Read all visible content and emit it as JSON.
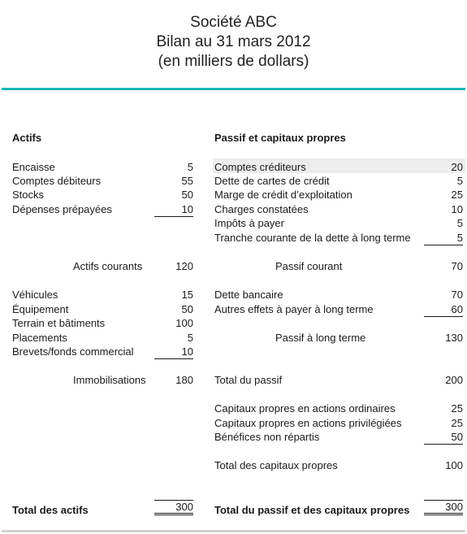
{
  "header": {
    "line1": "Société ABC",
    "line2": "Bilan au 31 mars 2012",
    "line3": "(en milliers de dollars)"
  },
  "colors": {
    "accent": "#1ab5b5",
    "highlight": "#ededed",
    "bottom_rule": "#d3d3d3"
  },
  "assets": {
    "heading": "Actifs",
    "current_items": [
      {
        "label": "Encaisse",
        "value": "5"
      },
      {
        "label": "Comptes débiteurs",
        "value": "55"
      },
      {
        "label": "Stocks",
        "value": "50"
      },
      {
        "label": "Dépenses prépayées",
        "value": "10"
      }
    ],
    "current_total": {
      "label": "Actifs courants",
      "value": "120"
    },
    "fixed_items": [
      {
        "label": "Véhicules",
        "value": "15"
      },
      {
        "label": "Équipement",
        "value": "50"
      },
      {
        "label": "Terrain et bâtiments",
        "value": "100"
      },
      {
        "label": "Placements",
        "value": "5"
      },
      {
        "label": "Brevets/fonds commercial",
        "value": "10"
      }
    ],
    "fixed_total": {
      "label": "Immobilisations",
      "value": "180"
    },
    "grand_total": {
      "label": "Total des actifs",
      "value": "300"
    }
  },
  "liabilities": {
    "heading": "Passif et capitaux propres",
    "current_items": [
      {
        "label": "Comptes créditeurs",
        "value": "20"
      },
      {
        "label": "Dette de cartes de crédit",
        "value": "5"
      },
      {
        "label": "Marge de crédit d’exploitation",
        "value": "25"
      },
      {
        "label": "Charges constatées",
        "value": "10"
      },
      {
        "label": "Impôts à payer",
        "value": "5"
      },
      {
        "label": "Tranche courante de la dette à long terme",
        "value": "5"
      }
    ],
    "current_total": {
      "label": "Passif courant",
      "value": "70"
    },
    "longterm_items": [
      {
        "label": "Dette bancaire",
        "value": "70"
      },
      {
        "label": "Autres effets à payer à long terme",
        "value": "60"
      }
    ],
    "longterm_total": {
      "label": "Passif à long terme",
      "value": "130"
    },
    "total_liabilities": {
      "label": "Total du passif",
      "value": "200"
    },
    "equity_items": [
      {
        "label": "Capitaux propres en actions ordinaires",
        "value": "25"
      },
      {
        "label": "Capitaux propres en actions privilégiées",
        "value": "25"
      },
      {
        "label": "Bénéfices non répartis",
        "value": "50"
      }
    ],
    "equity_total": {
      "label": "Total des capitaux propres",
      "value": "100"
    },
    "grand_total": {
      "label": "Total du passif et des capitaux propres",
      "value": "300"
    }
  }
}
